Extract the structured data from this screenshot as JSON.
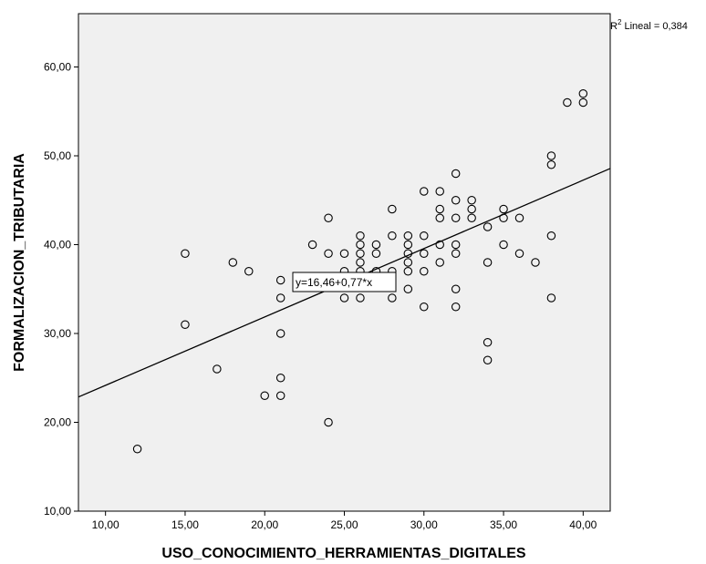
{
  "chart_data": {
    "type": "scatter",
    "xlabel": "USO_CONOCIMIENTO_HERRAMIENTAS_DIGITALES",
    "ylabel": "FORMALIZACION_TRIBUTARIA",
    "xlim": [
      8.3,
      41.7
    ],
    "ylim": [
      10,
      66
    ],
    "x_ticks": [
      10,
      15,
      20,
      25,
      30,
      35,
      40
    ],
    "x_tick_labels": [
      "10,00",
      "15,00",
      "20,00",
      "25,00",
      "30,00",
      "35,00",
      "40,00"
    ],
    "y_ticks": [
      10,
      20,
      30,
      40,
      50,
      60
    ],
    "y_tick_labels": [
      "10,00",
      "20,00",
      "30,00",
      "40,00",
      "50,00",
      "60,00"
    ],
    "grid": false,
    "r2_label": {
      "prefix": "R",
      "superscript": "2",
      "suffix": " Lineal = 0,384"
    },
    "fit_line": {
      "intercept": 16.46,
      "slope": 0.77,
      "equation_label": "y=16,46+0,77*x"
    },
    "marker_color": "#000000",
    "plot_background": "#f0f0f0",
    "points": [
      [
        12,
        17
      ],
      [
        15,
        39
      ],
      [
        15,
        31
      ],
      [
        17,
        26
      ],
      [
        18,
        38
      ],
      [
        19,
        37
      ],
      [
        20,
        23
      ],
      [
        21,
        23
      ],
      [
        21,
        25
      ],
      [
        21,
        30
      ],
      [
        21,
        34
      ],
      [
        21,
        36
      ],
      [
        23,
        40
      ],
      [
        24,
        43
      ],
      [
        24,
        39
      ],
      [
        24,
        20
      ],
      [
        25,
        39
      ],
      [
        25,
        37
      ],
      [
        25,
        34
      ],
      [
        26,
        41
      ],
      [
        26,
        40
      ],
      [
        26,
        39
      ],
      [
        26,
        38
      ],
      [
        26,
        37
      ],
      [
        26,
        34
      ],
      [
        27,
        40
      ],
      [
        27,
        39
      ],
      [
        27,
        37
      ],
      [
        28,
        44
      ],
      [
        28,
        41
      ],
      [
        28,
        37
      ],
      [
        28,
        34
      ],
      [
        29,
        41
      ],
      [
        29,
        40
      ],
      [
        29,
        39
      ],
      [
        29,
        38
      ],
      [
        29,
        37
      ],
      [
        29,
        35
      ],
      [
        30,
        46
      ],
      [
        30,
        41
      ],
      [
        30,
        39
      ],
      [
        30,
        37
      ],
      [
        30,
        33
      ],
      [
        31,
        46
      ],
      [
        31,
        44
      ],
      [
        31,
        43
      ],
      [
        31,
        40
      ],
      [
        31,
        38
      ],
      [
        32,
        48
      ],
      [
        32,
        45
      ],
      [
        32,
        43
      ],
      [
        32,
        40
      ],
      [
        32,
        39
      ],
      [
        32,
        35
      ],
      [
        32,
        33
      ],
      [
        33,
        45
      ],
      [
        33,
        44
      ],
      [
        33,
        43
      ],
      [
        34,
        42
      ],
      [
        34,
        38
      ],
      [
        34,
        29
      ],
      [
        34,
        27
      ],
      [
        35,
        44
      ],
      [
        35,
        43
      ],
      [
        35,
        40
      ],
      [
        36,
        43
      ],
      [
        36,
        39
      ],
      [
        37,
        38
      ],
      [
        38,
        50
      ],
      [
        38,
        49
      ],
      [
        38,
        41
      ],
      [
        38,
        34
      ],
      [
        39,
        56
      ],
      [
        40,
        57
      ],
      [
        40,
        56
      ]
    ]
  }
}
